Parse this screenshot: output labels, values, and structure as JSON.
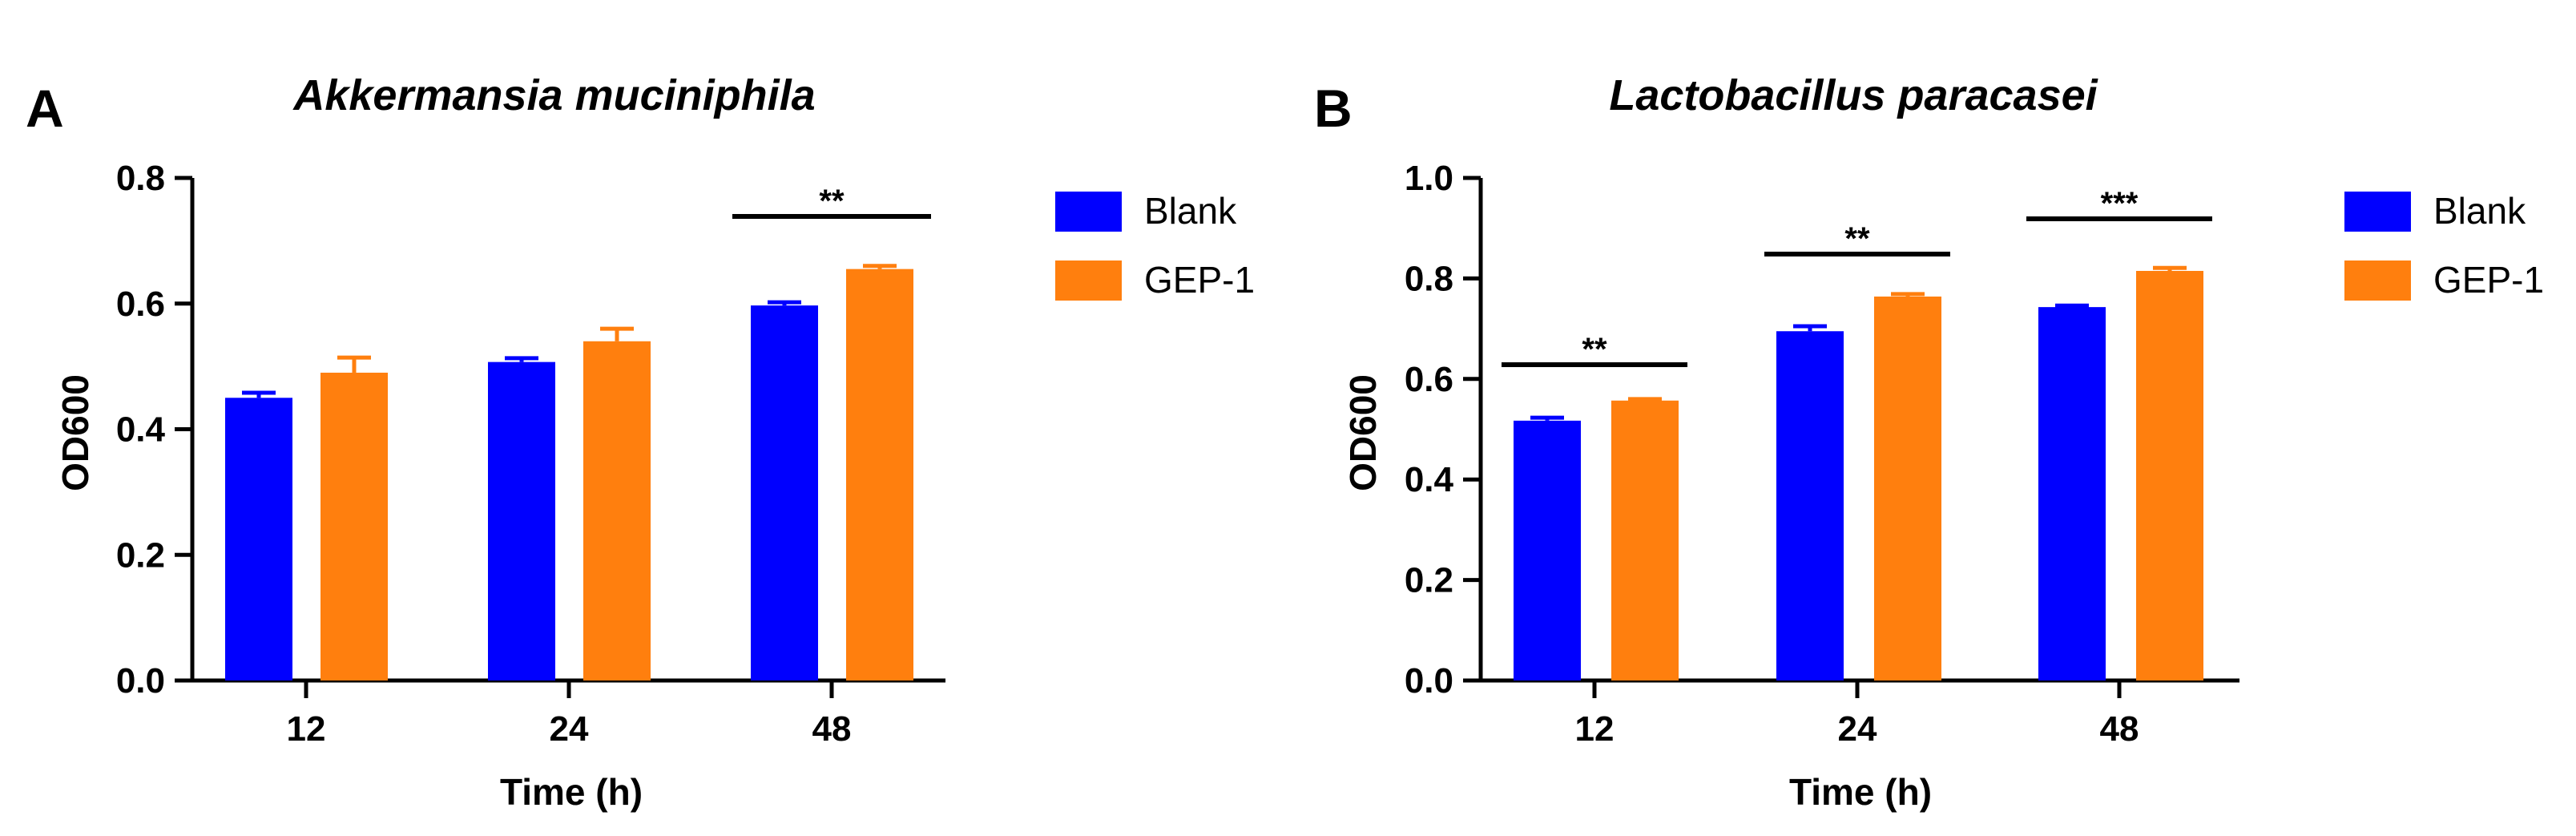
{
  "chart_data": [
    {
      "panel": "A",
      "type": "bar",
      "title": "Akkermansia muciniphila",
      "xlabel": "Time (h)",
      "ylabel": "OD600",
      "ylim": [
        0,
        0.8
      ],
      "yticks": [
        "0.0",
        "0.2",
        "0.4",
        "0.6",
        "0.8"
      ],
      "categories": [
        "12",
        "24",
        "48"
      ],
      "series": [
        {
          "name": "Blank",
          "color": "#0000FF",
          "values": [
            0.45,
            0.507,
            0.597
          ],
          "errors": [
            0.008,
            0.006,
            0.005
          ]
        },
        {
          "name": "GEP-1",
          "color": "#FF7F0E",
          "values": [
            0.49,
            0.54,
            0.655
          ],
          "errors": [
            0.024,
            0.02,
            0.005
          ]
        }
      ],
      "significance": [
        {
          "category": "48",
          "label": "**"
        }
      ]
    },
    {
      "panel": "B",
      "type": "bar",
      "title": "Lactobacillus paracasei",
      "xlabel": "Time (h)",
      "ylabel": "OD600",
      "ylim": [
        0,
        1.0
      ],
      "yticks": [
        "0.0",
        "0.2",
        "0.4",
        "0.6",
        "0.8",
        "1.0"
      ],
      "categories": [
        "12",
        "24",
        "48"
      ],
      "series": [
        {
          "name": "Blank",
          "color": "#0000FF",
          "values": [
            0.517,
            0.695,
            0.743
          ],
          "errors": [
            0.006,
            0.01,
            0.003
          ]
        },
        {
          "name": "GEP-1",
          "color": "#FF7F0E",
          "values": [
            0.557,
            0.764,
            0.815
          ],
          "errors": [
            0.003,
            0.005,
            0.006
          ]
        }
      ],
      "significance": [
        {
          "category": "12",
          "label": "**"
        },
        {
          "category": "24",
          "label": "**"
        },
        {
          "category": "48",
          "label": "***"
        }
      ]
    }
  ]
}
